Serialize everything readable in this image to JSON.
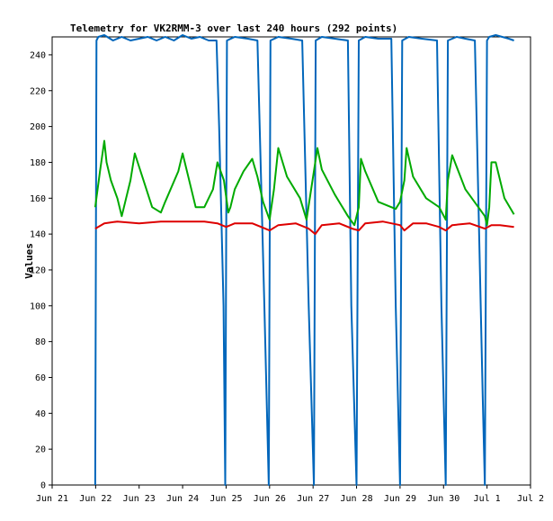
{
  "chart_data": {
    "type": "line",
    "title": "Telemetry for VK2RMM-3 over last 240 hours (292 points)",
    "xlabel": "",
    "ylabel": "Values",
    "ylim": [
      0,
      250
    ],
    "xlim": [
      0,
      11
    ],
    "x_ticks": [
      {
        "x": 0,
        "label": "Jun 21"
      },
      {
        "x": 1,
        "label": "Jun 22"
      },
      {
        "x": 2,
        "label": "Jun 23"
      },
      {
        "x": 3,
        "label": "Jun 24"
      },
      {
        "x": 4,
        "label": "Jun 25"
      },
      {
        "x": 5,
        "label": "Jun 26"
      },
      {
        "x": 6,
        "label": "Jun 27"
      },
      {
        "x": 7,
        "label": "Jun 28"
      },
      {
        "x": 8,
        "label": "Jun 29"
      },
      {
        "x": 9,
        "label": "Jun 30"
      },
      {
        "x": 10,
        "label": "Jul 1"
      },
      {
        "x": 11,
        "label": "Jul 2"
      }
    ],
    "y_ticks": [
      0,
      20,
      40,
      60,
      80,
      100,
      120,
      140,
      160,
      180,
      200,
      220,
      240
    ],
    "grid": false,
    "legend": "none",
    "series": [
      {
        "color": "#0066bb",
        "x": [
          0.99,
          1.02,
          1.06,
          1.2,
          1.4,
          1.6,
          1.8,
          2.0,
          2.2,
          2.4,
          2.6,
          2.8,
          3.0,
          3.2,
          3.4,
          3.6,
          3.78,
          3.84,
          3.94,
          3.98,
          4.02,
          4.2,
          4.5,
          4.72,
          4.88,
          4.98,
          5.02,
          5.2,
          5.5,
          5.75,
          5.9,
          6.02,
          6.06,
          6.2,
          6.5,
          6.8,
          6.88,
          7.0,
          7.05,
          7.2,
          7.5,
          7.8,
          7.9,
          8.0,
          8.05,
          8.2,
          8.5,
          8.85,
          8.95,
          9.05,
          9.1,
          9.3,
          9.5,
          9.72,
          9.9,
          9.95,
          10.0,
          10.05,
          10.2,
          10.5,
          10.62
        ],
        "y": [
          0,
          248,
          250,
          251,
          248,
          250,
          248,
          249,
          250,
          248,
          250,
          248,
          251,
          249,
          250,
          248,
          248,
          200,
          100,
          0,
          248,
          250,
          249,
          248,
          100,
          0,
          248,
          250,
          249,
          248,
          100,
          0,
          248,
          250,
          249,
          248,
          100,
          0,
          248,
          250,
          249,
          249,
          100,
          0,
          248,
          250,
          249,
          248,
          100,
          0,
          248,
          250,
          249,
          248,
          50,
          0,
          248,
          250,
          251,
          249,
          248
        ]
      },
      {
        "color": "#00aa00",
        "x": [
          0.99,
          1.1,
          1.2,
          1.25,
          1.35,
          1.5,
          1.6,
          1.8,
          1.9,
          2.1,
          2.3,
          2.5,
          2.6,
          2.9,
          3.0,
          3.2,
          3.3,
          3.5,
          3.7,
          3.8,
          3.95,
          4.05,
          4.1,
          4.2,
          4.4,
          4.6,
          4.72,
          4.85,
          5.0,
          5.1,
          5.2,
          5.4,
          5.7,
          5.85,
          6.05,
          6.1,
          6.2,
          6.5,
          6.8,
          6.95,
          7.05,
          7.1,
          7.2,
          7.5,
          7.9,
          8.0,
          8.1,
          8.15,
          8.3,
          8.6,
          8.9,
          9.05,
          9.1,
          9.2,
          9.5,
          9.95,
          10.0,
          10.05,
          10.1,
          10.2,
          10.4,
          10.62
        ],
        "y": [
          155,
          175,
          192,
          180,
          170,
          160,
          150,
          170,
          185,
          170,
          155,
          152,
          158,
          175,
          185,
          165,
          155,
          155,
          165,
          180,
          170,
          152,
          155,
          165,
          175,
          182,
          172,
          158,
          148,
          165,
          188,
          172,
          160,
          148,
          180,
          188,
          176,
          162,
          150,
          145,
          155,
          182,
          175,
          158,
          154,
          158,
          170,
          188,
          172,
          160,
          155,
          148,
          170,
          184,
          165,
          150,
          145,
          155,
          180,
          180,
          160,
          151
        ]
      },
      {
        "color": "#dd0000",
        "x": [
          0.99,
          1.2,
          1.5,
          2.0,
          2.5,
          3.0,
          3.5,
          3.8,
          4.0,
          4.2,
          4.6,
          4.9,
          5.0,
          5.2,
          5.6,
          5.9,
          6.05,
          6.2,
          6.6,
          6.9,
          7.05,
          7.2,
          7.6,
          8.0,
          8.1,
          8.3,
          8.6,
          8.9,
          9.05,
          9.2,
          9.6,
          9.95,
          10.1,
          10.3,
          10.62
        ],
        "y": [
          143,
          146,
          147,
          146,
          147,
          147,
          147,
          146,
          144,
          146,
          146,
          143,
          142,
          145,
          146,
          143,
          140,
          145,
          146,
          143,
          142,
          146,
          147,
          145,
          142,
          146,
          146,
          144,
          142,
          145,
          146,
          143,
          145,
          145,
          144
        ]
      }
    ]
  }
}
